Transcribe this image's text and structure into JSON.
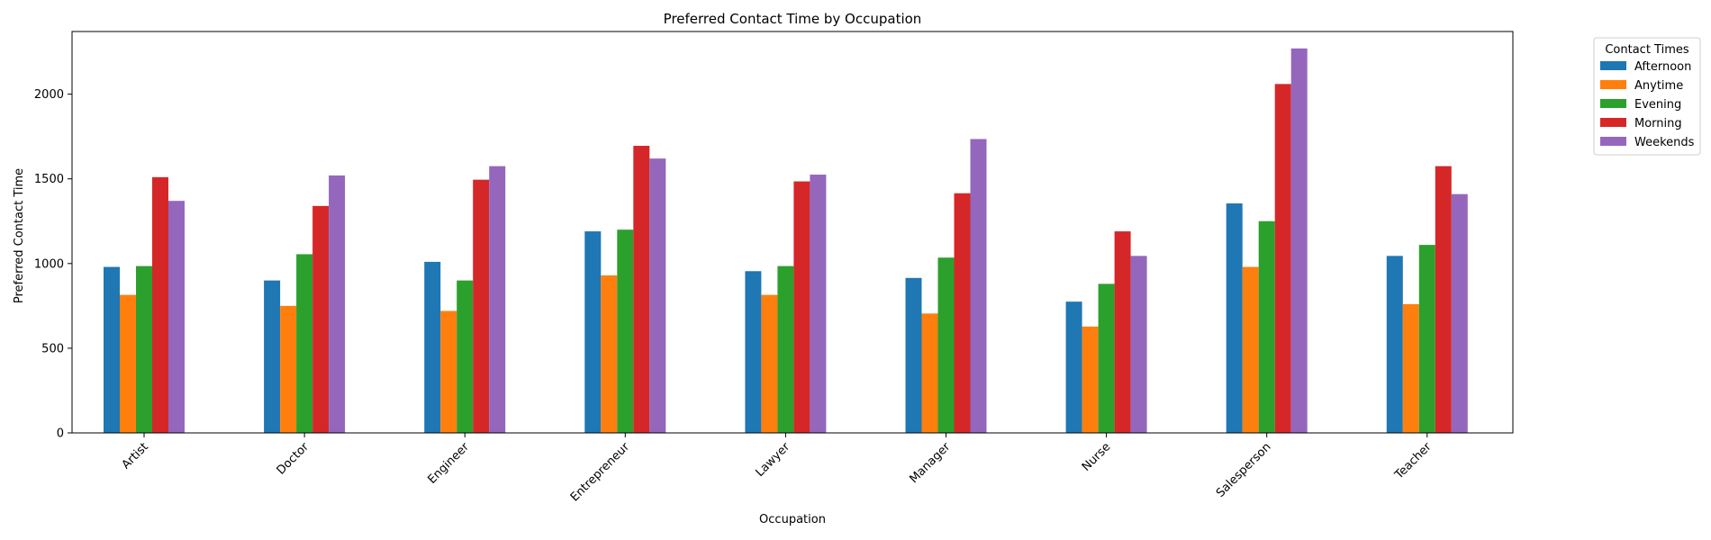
{
  "chart_data": {
    "type": "bar",
    "title": "Preferred Contact Time by Occupation",
    "xlabel": "Occupation",
    "ylabel": "Preferred Contact Time",
    "categories": [
      "Artist",
      "Doctor",
      "Engineer",
      "Entrepreneur",
      "Lawyer",
      "Manager",
      "Nurse",
      "Salesperson",
      "Teacher"
    ],
    "series": [
      {
        "name": "Afternoon",
        "color": "#1f77b4",
        "values": [
          980,
          900,
          1010,
          1190,
          955,
          915,
          775,
          1355,
          1045
        ]
      },
      {
        "name": "Anytime",
        "color": "#ff7f0e",
        "values": [
          815,
          750,
          720,
          930,
          815,
          705,
          628,
          980,
          760
        ]
      },
      {
        "name": "Evening",
        "color": "#2ca02c",
        "values": [
          985,
          1055,
          900,
          1200,
          985,
          1035,
          880,
          1250,
          1110
        ]
      },
      {
        "name": "Morning",
        "color": "#d62728",
        "values": [
          1510,
          1340,
          1495,
          1695,
          1485,
          1415,
          1190,
          2060,
          1575
        ]
      },
      {
        "name": "Weekends",
        "color": "#9467bd",
        "values": [
          1370,
          1520,
          1575,
          1620,
          1525,
          1735,
          1045,
          2270,
          1410
        ]
      }
    ],
    "ylim": [
      0,
      2370
    ],
    "yticks": [
      0,
      500,
      1000,
      1500,
      2000
    ],
    "legend": {
      "title": "Contact Times",
      "placement": "outside-top-right"
    },
    "grid": false
  }
}
